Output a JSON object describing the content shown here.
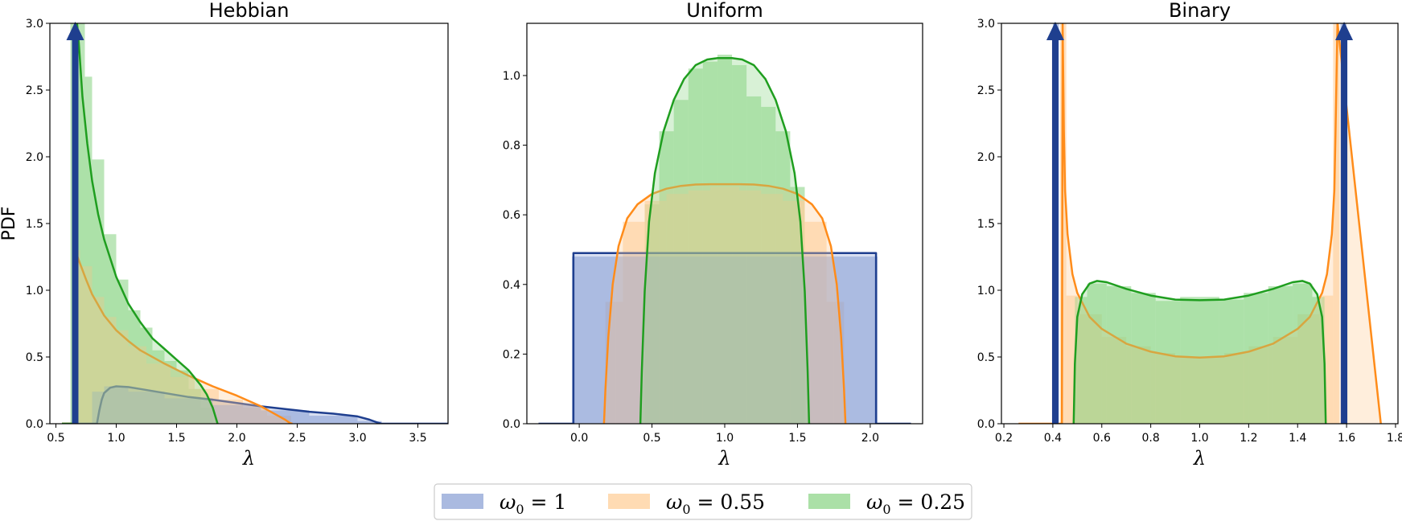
{
  "colors": {
    "blue": "#1f3f8f",
    "orange": "#ff8c1a",
    "green": "#1f9e1f",
    "blue_fill": "#8ea3d6",
    "orange_fill": "#ffcf9a",
    "green_fill": "#8fd68a"
  },
  "legend": {
    "placement": "bottom-center",
    "items": [
      {
        "symbol": "ω",
        "sub": "0",
        "rest": " = 1",
        "color": "blue"
      },
      {
        "symbol": "ω",
        "sub": "0",
        "rest": " = 0.55",
        "color": "orange"
      },
      {
        "symbol": "ω",
        "sub": "0",
        "rest": " = 0.25",
        "color": "green"
      }
    ]
  },
  "chart_data": [
    {
      "type": "area",
      "title": "Hebbian",
      "xlabel": "λ",
      "ylabel": "PDF",
      "xlim": [
        0.45,
        3.75
      ],
      "ylim": [
        0,
        3.0
      ],
      "xticks": [
        0.5,
        1.0,
        1.5,
        2.0,
        2.5,
        3.0,
        3.5
      ],
      "xtick_labels": [
        "0.5",
        "1.0",
        "1.5",
        "2.0",
        "2.5",
        "3.0",
        "3.5"
      ],
      "yticks": [
        0,
        0.5,
        1.0,
        1.5,
        2.0,
        2.5,
        3.0
      ],
      "ytick_labels": [
        "0.0",
        "0.5",
        "1.0",
        "1.5",
        "2.0",
        "2.5",
        "3.0"
      ],
      "grid": false,
      "arrows": [
        {
          "x": 0.66,
          "series": "blue"
        }
      ],
      "histograms": [
        {
          "series": "green",
          "bins": [
            [
              0.62,
              0.68,
              3.0
            ],
            [
              0.68,
              0.74,
              3.0
            ],
            [
              0.74,
              0.8,
              2.6
            ],
            [
              0.8,
              0.9,
              1.98
            ],
            [
              0.9,
              1.0,
              1.42
            ],
            [
              1.0,
              1.1,
              1.08
            ],
            [
              1.1,
              1.2,
              0.85
            ],
            [
              1.2,
              1.3,
              0.72
            ],
            [
              1.3,
              1.4,
              0.55
            ],
            [
              1.4,
              1.5,
              0.47
            ],
            [
              1.5,
              1.6,
              0.4
            ],
            [
              1.6,
              1.7,
              0.26
            ],
            [
              1.7,
              1.8,
              0.12
            ]
          ]
        },
        {
          "series": "orange",
          "bins": [
            [
              0.66,
              0.7,
              1.3
            ],
            [
              0.7,
              0.8,
              1.18
            ],
            [
              0.8,
              0.9,
              0.95
            ],
            [
              0.9,
              1.0,
              0.8
            ],
            [
              1.0,
              1.1,
              0.7
            ],
            [
              1.1,
              1.25,
              0.58
            ],
            [
              1.25,
              1.45,
              0.45
            ],
            [
              1.45,
              1.65,
              0.35
            ],
            [
              1.65,
              1.85,
              0.26
            ],
            [
              1.85,
              2.05,
              0.18
            ],
            [
              2.05,
              2.25,
              0.12
            ],
            [
              2.25,
              2.45,
              0.06
            ]
          ]
        },
        {
          "series": "blue",
          "bins": [
            [
              0.8,
              0.9,
              0.24
            ],
            [
              0.9,
              1.1,
              0.28
            ],
            [
              1.1,
              1.4,
              0.24
            ],
            [
              1.4,
              1.8,
              0.19
            ],
            [
              1.8,
              2.2,
              0.14
            ],
            [
              2.2,
              2.6,
              0.1
            ],
            [
              2.6,
              3.0,
              0.06
            ],
            [
              3.0,
              3.2,
              0.02
            ]
          ]
        }
      ],
      "series": [
        {
          "key": "blue",
          "x": [
            0.55,
            0.84,
            0.86,
            0.88,
            0.9,
            0.95,
            1.0,
            1.1,
            1.2,
            1.4,
            1.6,
            1.8,
            2.0,
            2.2,
            2.4,
            2.6,
            2.8,
            3.0,
            3.1,
            3.16,
            3.2,
            3.75
          ],
          "y": [
            0,
            0,
            0.1,
            0.18,
            0.23,
            0.27,
            0.28,
            0.275,
            0.26,
            0.23,
            0.2,
            0.18,
            0.155,
            0.13,
            0.11,
            0.09,
            0.075,
            0.055,
            0.03,
            0.01,
            0,
            0
          ]
        },
        {
          "key": "orange",
          "x": [
            0.55,
            0.67,
            0.675,
            0.7,
            0.75,
            0.8,
            0.9,
            1.0,
            1.1,
            1.2,
            1.4,
            1.6,
            1.8,
            2.0,
            2.2,
            2.3,
            2.4,
            2.44,
            2.46
          ],
          "y": [
            0,
            0,
            1.26,
            1.2,
            1.08,
            0.97,
            0.81,
            0.7,
            0.62,
            0.55,
            0.45,
            0.36,
            0.28,
            0.21,
            0.13,
            0.08,
            0.03,
            0.005,
            0
          ]
        },
        {
          "key": "green",
          "x": [
            0.55,
            0.67,
            0.675,
            0.69,
            0.72,
            0.76,
            0.8,
            0.85,
            0.9,
            1.0,
            1.1,
            1.2,
            1.3,
            1.4,
            1.5,
            1.6,
            1.7,
            1.75,
            1.8,
            1.83,
            1.84
          ],
          "y": [
            0,
            0,
            3.0,
            2.85,
            2.45,
            2.1,
            1.82,
            1.57,
            1.38,
            1.1,
            0.9,
            0.76,
            0.64,
            0.56,
            0.48,
            0.4,
            0.29,
            0.22,
            0.12,
            0.03,
            0
          ]
        }
      ]
    },
    {
      "type": "area",
      "title": "Uniform",
      "xlabel": "λ",
      "ylabel": "",
      "xlim": [
        -0.36,
        2.36
      ],
      "ylim": [
        0,
        1.15
      ],
      "xticks": [
        0.0,
        0.5,
        1.0,
        1.5,
        2.0
      ],
      "xtick_labels": [
        "0.0",
        "0.5",
        "1.0",
        "1.5",
        "2.0"
      ],
      "yticks": [
        0,
        0.2,
        0.4,
        0.6,
        0.8,
        1.0
      ],
      "ytick_labels": [
        "0.0",
        "0.2",
        "0.4",
        "0.6",
        "0.8",
        "1.0"
      ],
      "grid": false,
      "arrows": [],
      "histograms": [
        {
          "series": "green",
          "bins": [
            [
              0.45,
              0.55,
              0.63
            ],
            [
              0.55,
              0.65,
              0.84
            ],
            [
              0.65,
              0.75,
              0.93
            ],
            [
              0.75,
              0.85,
              1.02
            ],
            [
              0.85,
              0.95,
              1.04
            ],
            [
              0.95,
              1.05,
              1.06
            ],
            [
              1.05,
              1.15,
              1.03
            ],
            [
              1.15,
              1.25,
              0.94
            ],
            [
              1.25,
              1.35,
              0.91
            ],
            [
              1.35,
              1.45,
              0.84
            ],
            [
              1.45,
              1.55,
              0.68
            ]
          ]
        },
        {
          "series": "orange",
          "bins": [
            [
              0.18,
              0.3,
              0.35
            ],
            [
              0.3,
              0.45,
              0.58
            ],
            [
              0.45,
              0.6,
              0.64
            ],
            [
              0.6,
              0.75,
              0.66
            ],
            [
              0.75,
              0.9,
              0.67
            ],
            [
              0.9,
              1.1,
              0.68
            ],
            [
              1.1,
              1.25,
              0.67
            ],
            [
              1.25,
              1.4,
              0.66
            ],
            [
              1.4,
              1.55,
              0.64
            ],
            [
              1.55,
              1.7,
              0.58
            ],
            [
              1.7,
              1.82,
              0.35
            ]
          ]
        },
        {
          "series": "blue",
          "bins": [
            [
              -0.05,
              0.25,
              0.48
            ],
            [
              0.25,
              0.55,
              0.48
            ],
            [
              0.55,
              0.85,
              0.48
            ],
            [
              0.85,
              1.15,
              0.48
            ],
            [
              1.15,
              1.45,
              0.48
            ],
            [
              1.45,
              1.75,
              0.48
            ],
            [
              1.75,
              2.05,
              0.48
            ]
          ]
        }
      ],
      "series": [
        {
          "key": "blue",
          "x": [
            -0.28,
            -0.04,
            -0.04,
            2.04,
            2.04,
            2.28
          ],
          "y": [
            0,
            0,
            0.49,
            0.49,
            0,
            0
          ]
        },
        {
          "key": "orange",
          "x": [
            0.17,
            0.18,
            0.2,
            0.23,
            0.27,
            0.33,
            0.4,
            0.5,
            0.6,
            0.7,
            0.8,
            0.9,
            1.0,
            1.1,
            1.2,
            1.3,
            1.4,
            1.5,
            1.6,
            1.67,
            1.73,
            1.77,
            1.8,
            1.82,
            1.83
          ],
          "y": [
            0,
            0.1,
            0.25,
            0.4,
            0.51,
            0.59,
            0.63,
            0.66,
            0.675,
            0.683,
            0.687,
            0.688,
            0.688,
            0.688,
            0.687,
            0.683,
            0.675,
            0.66,
            0.63,
            0.59,
            0.51,
            0.4,
            0.25,
            0.1,
            0
          ]
        },
        {
          "key": "green",
          "x": [
            0.42,
            0.43,
            0.45,
            0.48,
            0.52,
            0.58,
            0.65,
            0.72,
            0.8,
            0.88,
            0.95,
            1.0,
            1.05,
            1.12,
            1.2,
            1.28,
            1.35,
            1.42,
            1.48,
            1.52,
            1.55,
            1.57,
            1.58
          ],
          "y": [
            0,
            0.15,
            0.38,
            0.58,
            0.72,
            0.84,
            0.93,
            0.99,
            1.03,
            1.046,
            1.05,
            1.05,
            1.05,
            1.046,
            1.03,
            0.99,
            0.93,
            0.84,
            0.72,
            0.58,
            0.38,
            0.15,
            0
          ]
        }
      ]
    },
    {
      "type": "area",
      "title": "Binary",
      "xlabel": "λ",
      "ylabel": "",
      "xlim": [
        0.19,
        1.81
      ],
      "ylim": [
        0,
        3.0
      ],
      "xticks": [
        0.2,
        0.4,
        0.6,
        0.8,
        1.0,
        1.2,
        1.4,
        1.6,
        1.8
      ],
      "xtick_labels": [
        "0.2",
        "0.4",
        "0.6",
        "0.8",
        "1.0",
        "1.2",
        "1.4",
        "1.6",
        "1.8"
      ],
      "yticks": [
        0,
        0.5,
        1.0,
        1.5,
        2.0,
        2.5,
        3.0
      ],
      "ytick_labels": [
        "0.0",
        "0.5",
        "1.0",
        "1.5",
        "2.0",
        "2.5",
        "3.0"
      ],
      "grid": false,
      "arrows": [
        {
          "x": 0.41,
          "series": "blue"
        },
        {
          "x": 1.59,
          "series": "blue"
        }
      ],
      "histograms": [
        {
          "series": "orange",
          "bins": [
            [
              0.43,
              0.455,
              3.0
            ],
            [
              0.455,
              0.5,
              0.96
            ],
            [
              0.5,
              0.6,
              0.82
            ],
            [
              0.6,
              0.7,
              0.65
            ],
            [
              0.7,
              0.8,
              0.58
            ],
            [
              0.8,
              0.9,
              0.53
            ],
            [
              0.9,
              1.1,
              0.5
            ],
            [
              1.1,
              1.2,
              0.53
            ],
            [
              1.2,
              1.3,
              0.58
            ],
            [
              1.3,
              1.4,
              0.65
            ],
            [
              1.4,
              1.5,
              0.82
            ],
            [
              1.5,
              1.545,
              0.96
            ],
            [
              1.545,
              1.57,
              3.0
            ]
          ]
        },
        {
          "series": "green",
          "bins": [
            [
              0.49,
              0.54,
              0.95
            ],
            [
              0.54,
              0.62,
              1.05
            ],
            [
              0.62,
              0.72,
              1.03
            ],
            [
              0.72,
              0.82,
              0.98
            ],
            [
              0.82,
              0.92,
              0.92
            ],
            [
              0.92,
              1.0,
              0.95
            ],
            [
              1.0,
              1.08,
              0.95
            ],
            [
              1.08,
              1.18,
              0.93
            ],
            [
              1.18,
              1.28,
              0.98
            ],
            [
              1.28,
              1.38,
              1.03
            ],
            [
              1.38,
              1.46,
              1.05
            ],
            [
              1.46,
              1.51,
              0.95
            ]
          ]
        },
        {
          "series": "blue",
          "bins": [
            [
              0.4,
              0.425,
              3.0
            ],
            [
              1.575,
              1.6,
              3.0
            ]
          ]
        }
      ],
      "series": [
        {
          "key": "orange",
          "x": [
            0.26,
            0.437,
            0.44,
            0.445,
            0.45,
            0.46,
            0.48,
            0.5,
            0.55,
            0.6,
            0.7,
            0.8,
            0.9,
            1.0,
            1.1,
            1.2,
            1.3,
            1.4,
            1.45,
            1.5,
            1.52,
            1.54,
            1.55,
            1.555,
            1.56,
            1.563,
            1.74
          ],
          "y": [
            0,
            0,
            3.0,
            2.2,
            1.75,
            1.42,
            1.12,
            0.98,
            0.8,
            0.71,
            0.6,
            0.54,
            0.505,
            0.495,
            0.505,
            0.54,
            0.6,
            0.71,
            0.8,
            0.98,
            1.12,
            1.42,
            1.75,
            2.2,
            2.7,
            3.0,
            0
          ]
        },
        {
          "key": "green",
          "x": [
            0.485,
            0.49,
            0.5,
            0.52,
            0.55,
            0.58,
            0.62,
            0.7,
            0.8,
            0.9,
            1.0,
            1.1,
            1.2,
            1.3,
            1.38,
            1.42,
            1.45,
            1.48,
            1.5,
            1.51,
            1.515
          ],
          "y": [
            0,
            0.45,
            0.8,
            0.97,
            1.05,
            1.07,
            1.06,
            1.01,
            0.96,
            0.93,
            0.925,
            0.93,
            0.96,
            1.01,
            1.06,
            1.07,
            1.05,
            0.97,
            0.8,
            0.45,
            0
          ]
        }
      ]
    }
  ]
}
